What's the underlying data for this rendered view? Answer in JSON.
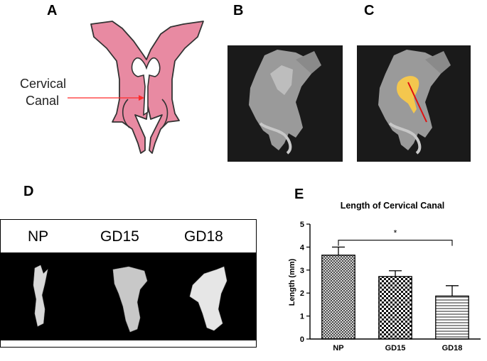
{
  "panels": {
    "a": "A",
    "b": "B",
    "c": "C",
    "d": "D",
    "e": "E"
  },
  "diagram": {
    "label_line1": "Cervical",
    "label_line2": "Canal"
  },
  "strip": {
    "labels": [
      "NP",
      "GD15",
      "GD18"
    ]
  },
  "chart_data": {
    "type": "bar",
    "title": "Length of Cervical Canal",
    "ylabel": "Length (mm)",
    "xlabel": "",
    "categories": [
      "NP",
      "GD15",
      "GD18"
    ],
    "values": [
      3.65,
      2.72,
      1.87
    ],
    "errors": [
      0.35,
      0.25,
      0.45
    ],
    "ylim": [
      0,
      5
    ],
    "yticks": [
      0,
      1,
      2,
      3,
      4,
      5
    ],
    "fill_patterns": [
      "crosshatch",
      "checker",
      "horizontal-lines"
    ],
    "significance": {
      "from": "NP",
      "to": "GD18",
      "label": "*"
    }
  }
}
